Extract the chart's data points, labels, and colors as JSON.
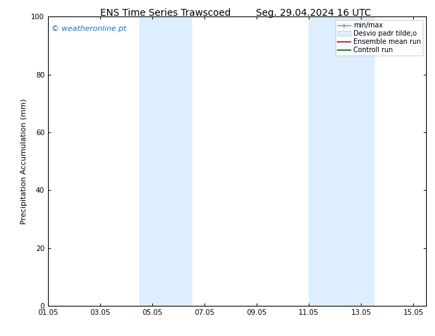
{
  "title_left": "ENS Time Series Trawscoed",
  "title_right": "Seg. 29.04.2024 16 UTC",
  "ylabel": "Precipitation Accumulation (mm)",
  "watermark": "© weatheronline.pt",
  "watermark_color": "#1a6fcc",
  "ylim": [
    0,
    100
  ],
  "yticks": [
    0,
    20,
    40,
    60,
    80,
    100
  ],
  "xlim": [
    0.0,
    14.5
  ],
  "xtick_labels": [
    "01.05",
    "03.05",
    "05.05",
    "07.05",
    "09.05",
    "11.05",
    "13.05",
    "15.05"
  ],
  "xtick_positions": [
    0.0,
    2.0,
    4.0,
    6.0,
    8.0,
    10.0,
    12.0,
    14.0
  ],
  "shaded_bands": [
    {
      "x_start": 3.5,
      "x_end": 5.5
    },
    {
      "x_start": 10.0,
      "x_end": 12.5
    }
  ],
  "shade_color": "#ddeeff",
  "background_color": "#ffffff",
  "grid_color": "#dddddd",
  "title_fontsize": 10,
  "axis_label_fontsize": 8,
  "tick_fontsize": 7.5,
  "watermark_fontsize": 8
}
